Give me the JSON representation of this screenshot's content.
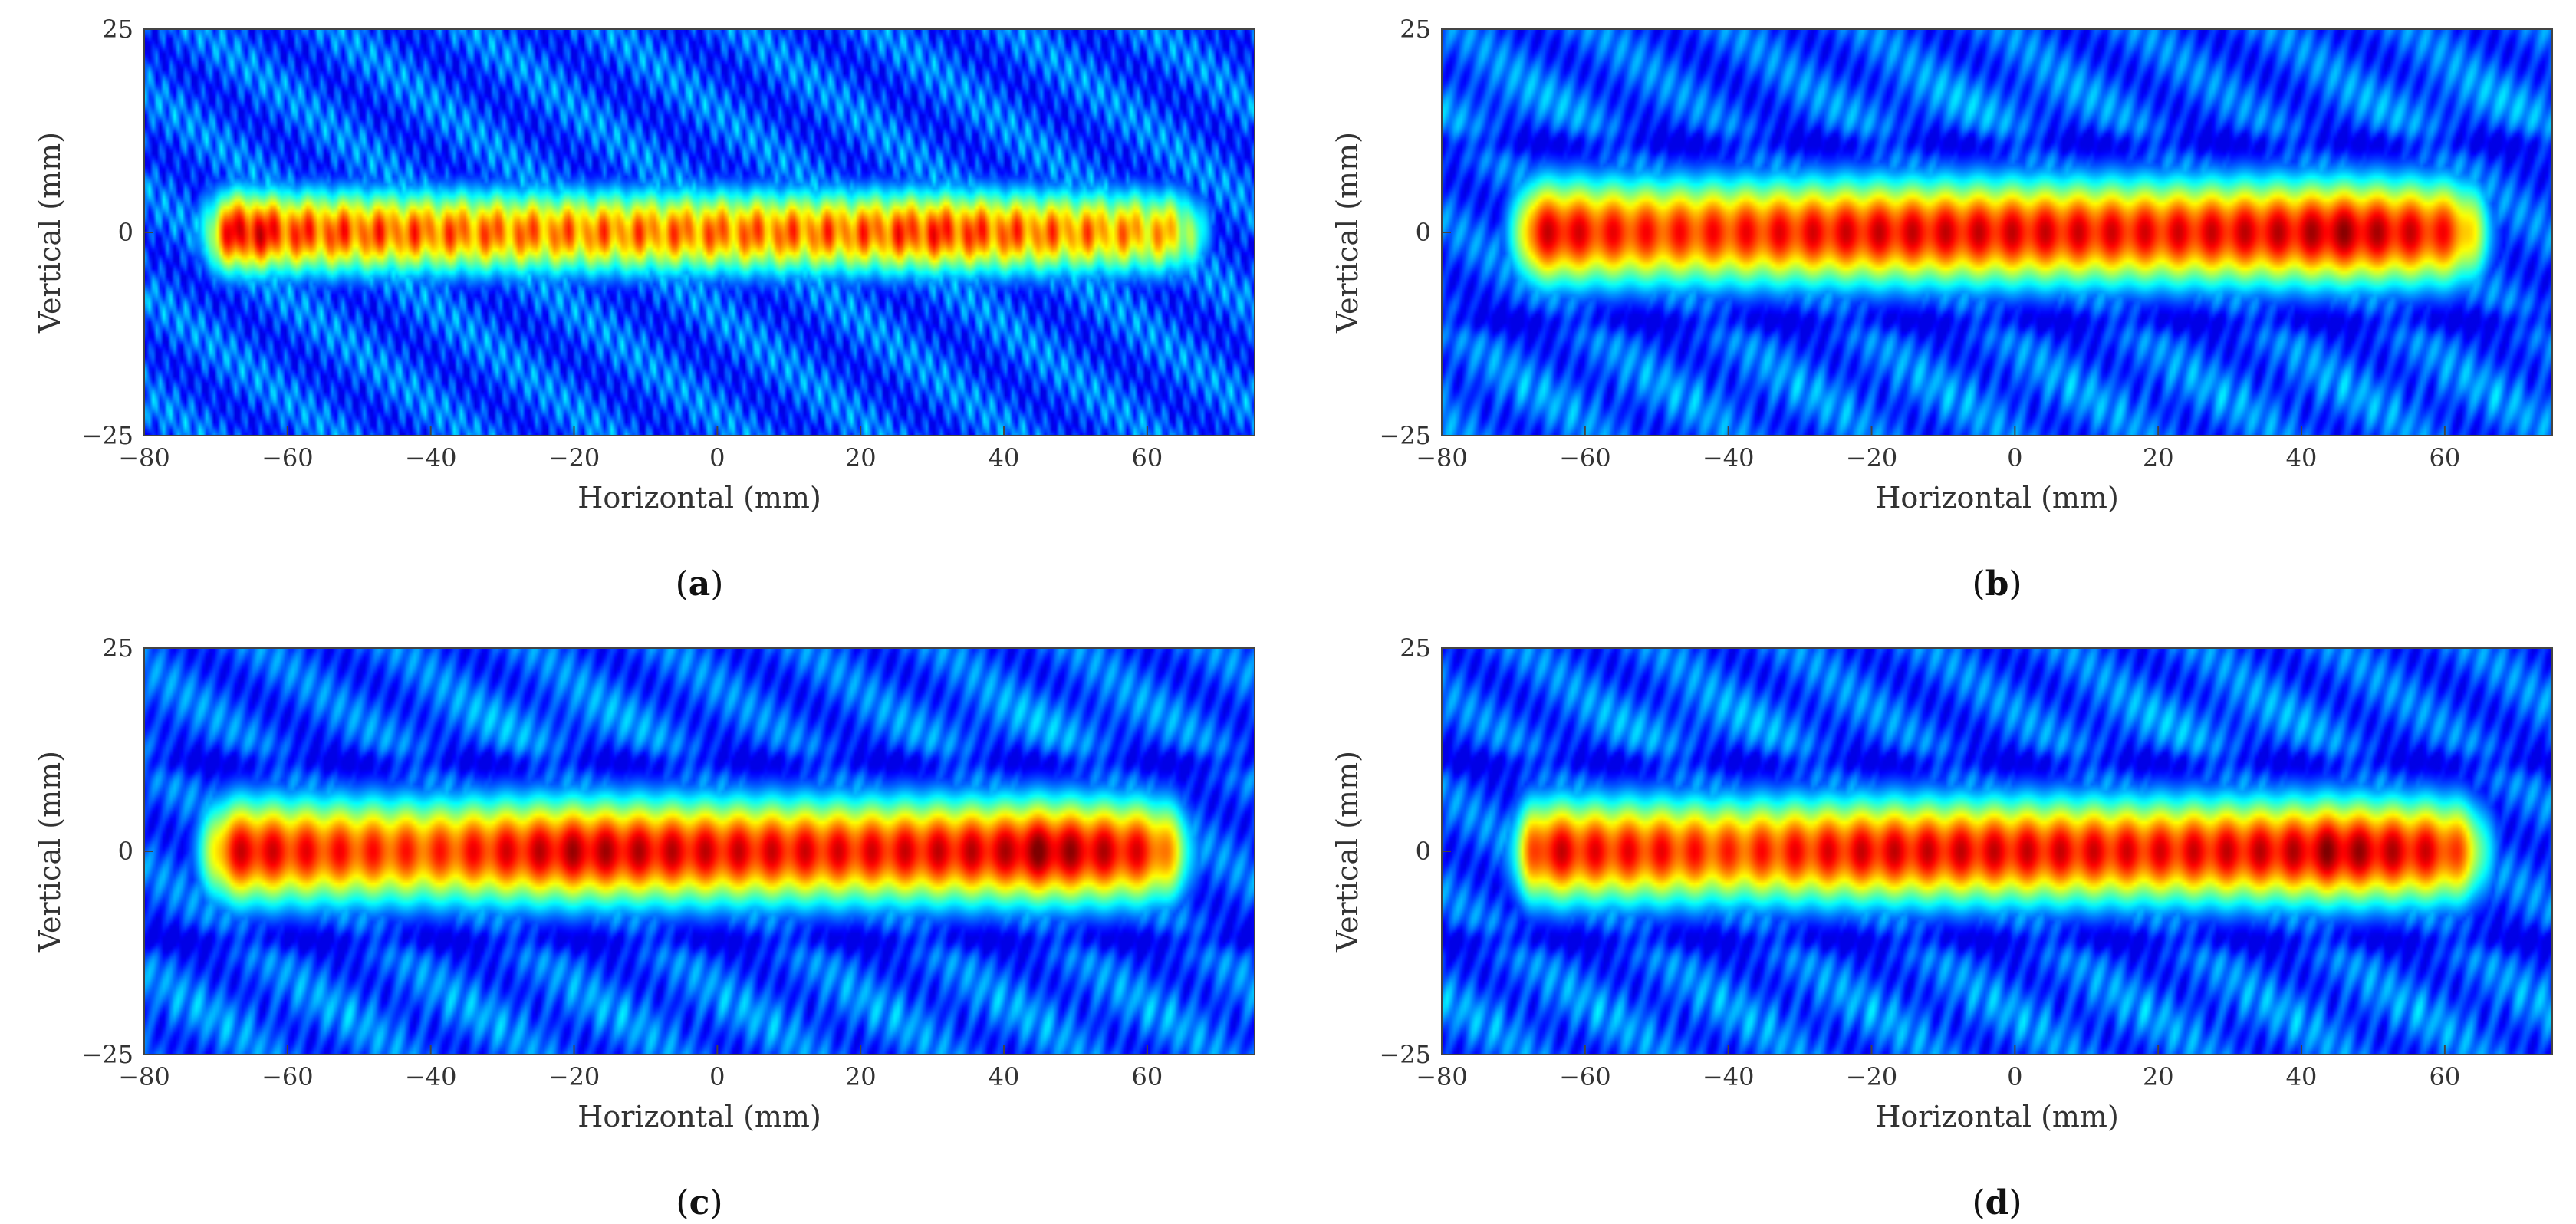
{
  "chart_data": [
    {
      "type": "heatmap",
      "panel_label": "a",
      "xlabel": "Horizontal (mm)",
      "ylabel": "Vertical (mm)",
      "xlim": [
        -80,
        75
      ],
      "ylim": [
        -25,
        25
      ],
      "xticks": [
        -80,
        -60,
        -40,
        -20,
        0,
        20,
        40,
        60
      ],
      "yticks": [
        -25,
        0,
        25
      ],
      "colormap": "jet",
      "band": {
        "center_y": 0,
        "half_width": 4,
        "x_start": -72,
        "x_end": 68,
        "profile_x": [
          -72,
          -68,
          -60,
          -50,
          -40,
          -20,
          0,
          20,
          30,
          45,
          60,
          68
        ],
        "profile_intensity": [
          0.75,
          0.95,
          0.8,
          0.78,
          0.76,
          0.74,
          0.75,
          0.76,
          0.82,
          0.75,
          0.7,
          0.7
        ]
      },
      "speckle": "high"
    },
    {
      "type": "heatmap",
      "panel_label": "b",
      "xlabel": "Horizontal (mm)",
      "ylabel": "Vertical (mm)",
      "xlim": [
        -80,
        75
      ],
      "ylim": [
        -25,
        25
      ],
      "xticks": [
        -80,
        -60,
        -40,
        -20,
        0,
        20,
        40,
        60
      ],
      "yticks": [
        -25,
        0,
        25
      ],
      "colormap": "jet",
      "band": {
        "center_y": 0,
        "half_width": 5,
        "x_start": -70,
        "x_end": 66,
        "profile_x": [
          -70,
          -68,
          -60,
          -50,
          -40,
          -20,
          0,
          20,
          40,
          45,
          60,
          66
        ],
        "profile_intensity": [
          0.85,
          0.97,
          0.85,
          0.82,
          0.83,
          0.88,
          0.88,
          0.86,
          0.9,
          0.94,
          0.85,
          0.8
        ]
      },
      "speckle": "low"
    },
    {
      "type": "heatmap",
      "panel_label": "c",
      "xlabel": "Horizontal (mm)",
      "ylabel": "Vertical (mm)",
      "xlim": [
        -80,
        75
      ],
      "ylim": [
        -25,
        25
      ],
      "xticks": [
        -80,
        -60,
        -40,
        -20,
        0,
        20,
        40,
        60
      ],
      "yticks": [
        -25,
        0,
        25
      ],
      "colormap": "jet",
      "band": {
        "center_y": 0,
        "half_width": 5,
        "x_start": -72,
        "x_end": 66,
        "profile_x": [
          -72,
          -68,
          -60,
          -50,
          -40,
          -20,
          0,
          20,
          40,
          45,
          60,
          66
        ],
        "profile_intensity": [
          0.82,
          0.92,
          0.85,
          0.82,
          0.8,
          0.92,
          0.88,
          0.86,
          0.9,
          0.96,
          0.86,
          0.8
        ]
      },
      "speckle": "low"
    },
    {
      "type": "heatmap",
      "panel_label": "d",
      "xlabel": "Horizontal (mm)",
      "ylabel": "Vertical (mm)",
      "xlim": [
        -80,
        75
      ],
      "ylim": [
        -25,
        25
      ],
      "xticks": [
        -80,
        -60,
        -40,
        -20,
        0,
        20,
        40,
        60
      ],
      "yticks": [
        -25,
        0,
        25
      ],
      "colormap": "jet",
      "band": {
        "center_y": 0,
        "half_width": 5,
        "x_start": -70,
        "x_end": 66,
        "profile_x": [
          -70,
          -68,
          -60,
          -50,
          -40,
          -20,
          0,
          20,
          40,
          44,
          60,
          66
        ],
        "profile_intensity": [
          0.85,
          0.95,
          0.85,
          0.84,
          0.8,
          0.88,
          0.88,
          0.86,
          0.9,
          0.95,
          0.86,
          0.8
        ]
      },
      "speckle": "low"
    }
  ]
}
